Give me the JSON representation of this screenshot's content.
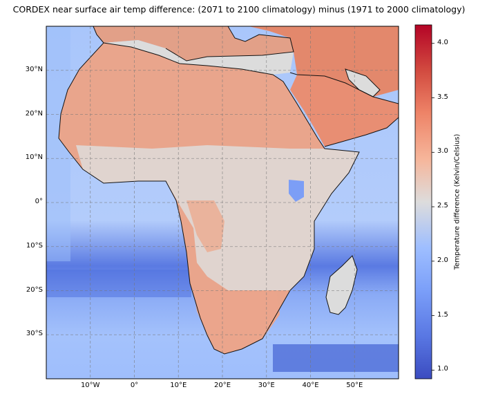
{
  "title": "CORDEX near surface air temp difference: (2071 to 2100 climatology) minus (1971 to 2000 climatology)",
  "map": {
    "lon_range": [
      -20,
      60
    ],
    "lat_range": [
      -40,
      40
    ],
    "lat_ticks": [
      {
        "value": 30,
        "label": "30°N"
      },
      {
        "value": 20,
        "label": "20°N"
      },
      {
        "value": 10,
        "label": "10°N"
      },
      {
        "value": 0,
        "label": "0°"
      },
      {
        "value": -10,
        "label": "10°S"
      },
      {
        "value": -20,
        "label": "20°S"
      },
      {
        "value": -30,
        "label": "30°S"
      }
    ],
    "lon_ticks": [
      {
        "value": -10,
        "label": "10°W"
      },
      {
        "value": 0,
        "label": "0°"
      },
      {
        "value": 10,
        "label": "10°E"
      },
      {
        "value": 20,
        "label": "20°E"
      },
      {
        "value": 30,
        "label": "30°E"
      },
      {
        "value": 40,
        "label": "40°E"
      },
      {
        "value": 50,
        "label": "50°E"
      }
    ],
    "gridlines": true,
    "land_mask_color": "#dcdcdc",
    "colormap": "coolwarm"
  },
  "colorbar": {
    "label": "Temperature difference (Kelvin/Celsius)",
    "range": [
      0.92,
      4.17
    ],
    "ticks": [
      {
        "value": 1.0,
        "label": "1.0"
      },
      {
        "value": 1.5,
        "label": "1.5"
      },
      {
        "value": 2.0,
        "label": "2.0"
      },
      {
        "value": 2.5,
        "label": "2.5"
      },
      {
        "value": 3.0,
        "label": "3.0"
      },
      {
        "value": 3.5,
        "label": "3.5"
      },
      {
        "value": 4.0,
        "label": "4.0"
      }
    ]
  }
}
